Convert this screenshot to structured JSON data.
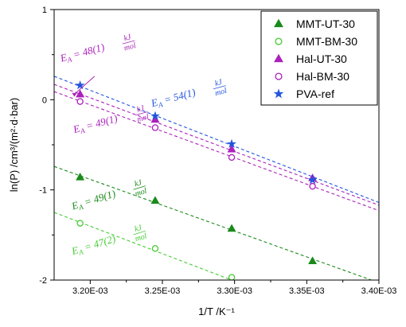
{
  "chart_data": {
    "type": "scatter",
    "title": "",
    "xlabel": "1/T /K⁻¹",
    "ylabel": "ln(P) /cm³/(m²·d·bar)",
    "xlim": [
      0.003175,
      0.0034
    ],
    "ylim": [
      -2,
      1
    ],
    "x_ticks": [
      0.0032,
      0.00325,
      0.0033,
      0.00335,
      0.0034
    ],
    "x_tick_labels": [
      "3.20E-03",
      "3.25E-03",
      "3.30E-03",
      "3.35E-03",
      "3.40E-03"
    ],
    "y_ticks": [
      -2,
      -1,
      0,
      1
    ],
    "y_tick_labels": [
      "-2",
      "-1",
      "0",
      "1"
    ],
    "legend_position": "top-right",
    "series": [
      {
        "name": "MMT-UT-30",
        "color": "#1a8a1a",
        "marker": "triangle",
        "fill": "filled",
        "x": [
          0.003193,
          0.003245,
          0.003298,
          0.003354
        ],
        "y": [
          -0.86,
          -1.12,
          -1.43,
          -1.79
        ],
        "fit": [
          [
            0.003175,
            -0.74
          ],
          [
            0.0034,
            -2.03
          ]
        ]
      },
      {
        "name": "MMT-BM-30",
        "color": "#44cc33",
        "marker": "circle",
        "fill": "open",
        "x": [
          0.003193,
          0.003245,
          0.003298
        ],
        "y": [
          -1.37,
          -1.65,
          -1.97
        ],
        "fit": [
          [
            0.003175,
            -1.25
          ],
          [
            0.003298,
            -2.0
          ]
        ]
      },
      {
        "name": "Hal-UT-30",
        "color": "#aa22bb",
        "marker": "triangle",
        "fill": "filled",
        "x": [
          0.003193,
          0.003245,
          0.003298,
          0.003354
        ],
        "y": [
          0.06,
          -0.22,
          -0.55,
          -0.87
        ],
        "fit": [
          [
            0.003175,
            0.17
          ],
          [
            0.0034,
            -1.17
          ]
        ]
      },
      {
        "name": "Hal-BM-30",
        "color": "#aa22bb",
        "marker": "circle",
        "fill": "open",
        "x": [
          0.003193,
          0.003245,
          0.003298,
          0.003354
        ],
        "y": [
          -0.02,
          -0.31,
          -0.64,
          -0.96
        ],
        "fit": [
          [
            0.003175,
            0.09
          ],
          [
            0.0034,
            -1.23
          ]
        ]
      },
      {
        "name": "PVA-ref",
        "color": "#2255dd",
        "marker": "star",
        "fill": "filled",
        "x": [
          0.003193,
          0.003245,
          0.003298,
          0.003354
        ],
        "y": [
          0.16,
          -0.18,
          -0.49,
          -0.89
        ],
        "fit": [
          [
            0.003175,
            0.26
          ],
          [
            0.0034,
            -1.14
          ]
        ]
      }
    ],
    "annotations": [
      {
        "id": "ann-mmt-ut",
        "main": "E",
        "sub": "A",
        "rest": " = 49(1)",
        "frac_top": "kJ",
        "frac_bottom": "mol",
        "color": "#1a8a1a",
        "x": 0.003188,
        "y": -1.22,
        "rotate": -17
      },
      {
        "id": "ann-mmt-bm",
        "main": "E",
        "sub": "A",
        "rest": " = 47(2)",
        "frac_top": "kJ",
        "frac_bottom": "mol",
        "color": "#44cc33",
        "x": 0.003188,
        "y": -1.72,
        "rotate": -17
      },
      {
        "id": "ann-hal-top",
        "main": "E",
        "sub": "A",
        "rest": " = 48(1)",
        "frac_top": "kJ",
        "frac_bottom": "mol",
        "color": "#aa22bb",
        "x": 0.00318,
        "y": 0.42,
        "rotate": -15
      },
      {
        "id": "ann-hal-bot",
        "main": "E",
        "sub": "A",
        "rest": " = 49(1)",
        "frac_top": "kJ",
        "frac_bottom": "mol",
        "color": "#aa22bb",
        "x": 0.003189,
        "y": -0.37,
        "rotate": -15
      },
      {
        "id": "ann-pva",
        "main": "E",
        "sub": "A",
        "rest": " = 54(1)",
        "frac_top": "kJ",
        "frac_bottom": "mol",
        "color": "#2255dd",
        "x": 0.003243,
        "y": -0.08,
        "rotate": -15
      }
    ]
  }
}
